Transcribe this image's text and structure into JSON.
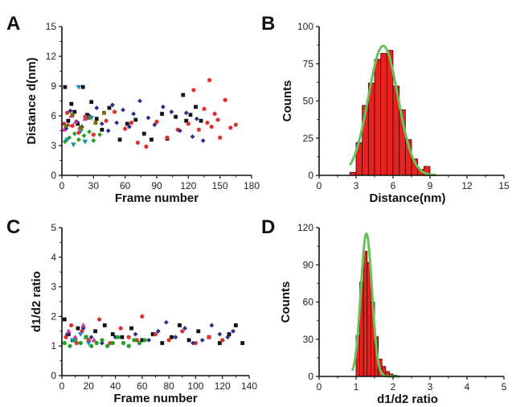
{
  "chart_data": [
    {
      "id": "A",
      "panel_label": "A",
      "type": "scatter",
      "xlabel": "Frame number",
      "ylabel": "Distance d(nm)",
      "xlim": [
        0,
        180
      ],
      "ylim": [
        0,
        15
      ],
      "xticks": [
        0,
        30,
        60,
        90,
        120,
        150,
        180
      ],
      "yticks": [
        0,
        3,
        6,
        9,
        12,
        15
      ],
      "series": [
        {
          "color": "#111111",
          "marker": "square",
          "x": [
            3,
            6,
            9,
            12,
            15,
            20,
            24,
            28,
            33,
            38,
            45,
            55,
            62,
            70,
            78,
            85,
            95,
            100,
            108,
            115,
            118,
            122,
            127,
            132
          ],
          "y": [
            8.9,
            5.5,
            7.2,
            6.4,
            5.2,
            8.9,
            6.1,
            7.4,
            5.7,
            4.6,
            6.8,
            3.6,
            5.2,
            5.6,
            4.2,
            3.6,
            6.2,
            3.7,
            5.9,
            8.1,
            5.5,
            6.1,
            6.9,
            5.5
          ]
        },
        {
          "color": "#e03030",
          "marker": "circle",
          "x": [
            2,
            5,
            10,
            16,
            22,
            30,
            42,
            50,
            60,
            66,
            72,
            80,
            90,
            100,
            110,
            120,
            125,
            130,
            135,
            138,
            140,
            142,
            145,
            148,
            150,
            155,
            160,
            165
          ],
          "y": [
            5.2,
            6.3,
            5.0,
            4.3,
            5.9,
            4.1,
            5.5,
            6.4,
            4.7,
            5.3,
            3.3,
            2.9,
            5.4,
            3.8,
            4.6,
            5.2,
            8.6,
            4.6,
            6.7,
            5.3,
            9.6,
            4.9,
            6.2,
            5.6,
            3.8,
            7.6,
            4.8,
            5.1
          ]
        },
        {
          "color": "#2b2b8c",
          "marker": "diamond",
          "x": [
            4,
            8,
            14,
            19,
            26,
            33,
            38,
            44,
            48,
            52,
            58,
            64,
            68,
            74,
            82,
            88,
            96,
            104,
            112,
            118,
            124,
            128,
            134
          ],
          "y": [
            4.7,
            6.5,
            5.4,
            4.9,
            6.0,
            6.8,
            5.2,
            4.5,
            7.1,
            5.3,
            6.6,
            4.9,
            6.2,
            7.5,
            5.8,
            5.1,
            6.9,
            6.4,
            4.5,
            6.3,
            3.9,
            5.7,
            3.5
          ]
        },
        {
          "color": "#22a022",
          "marker": "diamond",
          "x": [
            3,
            7,
            12,
            16,
            21,
            26,
            30,
            36
          ],
          "y": [
            3.4,
            3.8,
            4.2,
            3.6,
            4.0,
            4.4,
            3.5,
            4.1
          ]
        },
        {
          "color": "#1c8fb0",
          "marker": "triangle-down",
          "x": [
            5,
            11,
            16,
            18,
            22,
            28
          ],
          "y": [
            3.6,
            3.1,
            8.9,
            4.5,
            3.4,
            5.8
          ]
        },
        {
          "color": "#cc3aa8",
          "marker": "triangle",
          "x": [
            2,
            6,
            9,
            13,
            17,
            22
          ],
          "y": [
            4.6,
            5.1,
            6.0,
            5.4,
            4.8,
            5.7
          ]
        },
        {
          "color": "#707000",
          "marker": "square",
          "x": [
            4,
            10,
            18,
            25,
            32,
            40
          ],
          "y": [
            5.0,
            6.1,
            4.8,
            5.8,
            5.3,
            6.3
          ]
        }
      ]
    },
    {
      "id": "B",
      "panel_label": "B",
      "type": "bar",
      "xlabel": "Distance(nm)",
      "ylabel": "Counts",
      "xlim": [
        0,
        15
      ],
      "ylim": [
        0,
        100
      ],
      "xticks": [
        0,
        3,
        6,
        9,
        12,
        15
      ],
      "yticks": [
        0,
        25,
        50,
        75,
        100
      ],
      "bin_width": 0.5,
      "bin_starts": [
        2.5,
        3.0,
        3.5,
        4.0,
        4.5,
        5.0,
        5.5,
        6.0,
        6.5,
        7.0,
        7.5,
        8.0,
        8.5
      ],
      "values": [
        2,
        22,
        47,
        62,
        78,
        82,
        84,
        60,
        44,
        24,
        11,
        4,
        6
      ],
      "fit": {
        "type": "gaussian",
        "color": "#6ac05a",
        "mu": 5.2,
        "sigma": 1.2,
        "amplitude": 87,
        "x_range": [
          2.5,
          9.5
        ]
      },
      "bar_color": "#e8231f"
    },
    {
      "id": "C",
      "panel_label": "C",
      "type": "scatter",
      "xlabel": "Frame number",
      "ylabel": "d1/d2 ratio",
      "xlim": [
        0,
        140
      ],
      "ylim": [
        0,
        5
      ],
      "xticks": [
        0,
        20,
        40,
        60,
        80,
        100,
        120,
        140
      ],
      "yticks": [
        0,
        1,
        2,
        3,
        4,
        5
      ],
      "series": [
        {
          "color": "#111111",
          "marker": "square",
          "x": [
            2,
            5,
            8,
            12,
            18,
            25,
            32,
            38,
            45,
            52,
            60,
            68,
            75,
            82,
            88,
            95,
            102,
            110,
            118,
            125,
            130,
            135
          ],
          "y": [
            1.9,
            1.4,
            1.2,
            1.6,
            1.3,
            1.5,
            1.7,
            1.4,
            1.3,
            1.6,
            1.2,
            1.4,
            1.1,
            1.3,
            1.7,
            1.2,
            1.5,
            1.3,
            1.1,
            1.4,
            1.7,
            1.1
          ]
        },
        {
          "color": "#e03030",
          "marker": "circle",
          "x": [
            3,
            7,
            11,
            15,
            20,
            28,
            36,
            44,
            50,
            56,
            60,
            70,
            80,
            90,
            100,
            110,
            120
          ],
          "y": [
            1.3,
            1.7,
            1.1,
            1.5,
            1.2,
            1.9,
            1.1,
            1.6,
            1.3,
            1.2,
            2.0,
            1.4,
            1.2,
            1.5,
            1.1,
            1.3,
            1.2
          ]
        },
        {
          "color": "#2b2b8c",
          "marker": "diamond",
          "x": [
            4,
            9,
            16,
            22,
            30,
            40,
            55,
            65,
            72,
            78,
            85,
            92,
            98,
            105,
            112,
            118,
            124,
            128
          ],
          "y": [
            1.4,
            1.2,
            1.6,
            1.3,
            1.1,
            1.3,
            1.4,
            1.2,
            1.5,
            1.8,
            1.3,
            1.6,
            1.1,
            1.2,
            1.7,
            1.4,
            1.3,
            1.5
          ]
        },
        {
          "color": "#22a022",
          "marker": "circle",
          "x": [
            2,
            6,
            10,
            14,
            18,
            22,
            26,
            30,
            34,
            38,
            42,
            46,
            50,
            54,
            58,
            62
          ],
          "y": [
            1.1,
            1.0,
            1.2,
            1.1,
            1.3,
            1.0,
            1.1,
            1.2,
            1.0,
            1.1,
            1.3,
            1.1,
            1.0,
            1.2,
            1.1,
            1.2
          ]
        },
        {
          "color": "#cc3aa8",
          "marker": "triangle",
          "x": [
            5,
            10,
            16,
            24
          ],
          "y": [
            1.5,
            1.3,
            1.7,
            1.2
          ]
        },
        {
          "color": "#1c8fb0",
          "marker": "triangle-down",
          "x": [
            8,
            14,
            20
          ],
          "y": [
            1.2,
            1.4,
            1.1
          ]
        }
      ]
    },
    {
      "id": "D",
      "panel_label": "D",
      "type": "bar",
      "xlabel": "d1/d2 ratio",
      "ylabel": "Counts",
      "xlim": [
        0,
        5
      ],
      "ylim": [
        0,
        120
      ],
      "xticks": [
        0,
        1,
        2,
        3,
        4,
        5
      ],
      "yticks": [
        0,
        30,
        60,
        90,
        120
      ],
      "bin_width": 0.1,
      "bin_starts": [
        1.0,
        1.1,
        1.2,
        1.3,
        1.4,
        1.5,
        1.6,
        1.7,
        1.8,
        1.9,
        2.0
      ],
      "values": [
        33,
        76,
        101,
        92,
        60,
        32,
        14,
        8,
        4,
        2,
        1
      ],
      "fit": {
        "type": "gaussian",
        "color": "#6ac05a",
        "mu": 1.28,
        "sigma": 0.15,
        "amplitude": 115,
        "x_range": [
          0.9,
          2.2
        ]
      },
      "bar_color": "#e8231f"
    }
  ]
}
